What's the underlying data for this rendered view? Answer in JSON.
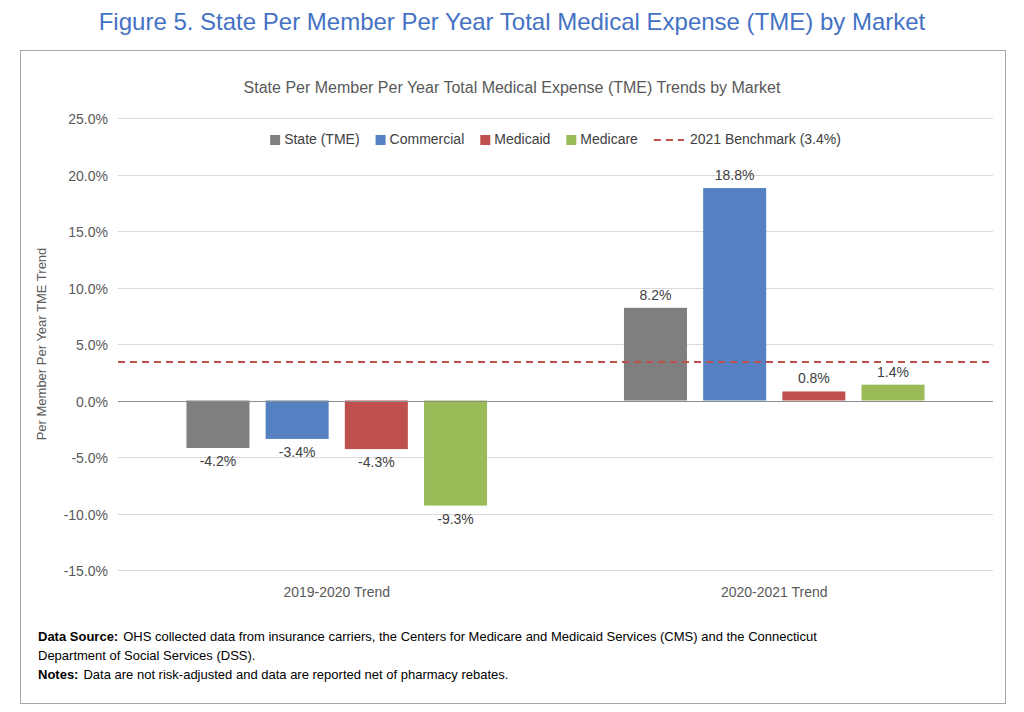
{
  "header": {
    "title": "Figure 5. State Per Member Per Year Total Medical Expense (TME) by Market"
  },
  "chart_data": {
    "type": "bar",
    "title": "State Per Member Per Year Total Medical Expense (TME) Trends by Market",
    "y_label": "Per Member Per Year TME Trend",
    "categories": [
      "2019-2020 Trend",
      "2020-2021 Trend"
    ],
    "series": [
      {
        "name": "State (TME)",
        "color": "#7f7f7f",
        "values": [
          -4.2,
          8.2
        ],
        "value_labels": [
          "-4.2%",
          "8.2%"
        ]
      },
      {
        "name": "Commercial",
        "color": "#5580c2",
        "values": [
          -3.4,
          18.8
        ],
        "value_labels": [
          "-3.4%",
          "18.8%"
        ]
      },
      {
        "name": "Medicaid",
        "color": "#bf504d",
        "values": [
          -4.3,
          0.8
        ],
        "value_labels": [
          "-4.3%",
          "0.8%"
        ]
      },
      {
        "name": "Medicare",
        "color": "#9bbb59",
        "values": [
          -9.3,
          1.4
        ],
        "value_labels": [
          "-9.3%",
          "1.4%"
        ]
      }
    ],
    "reference_lines": [
      {
        "name": "2021 Benchmark (3.4%)",
        "value": 3.4,
        "color": "#c0504d",
        "line_style": "dashed"
      }
    ],
    "ylim": [
      -15,
      25
    ],
    "yticks": [
      {
        "value": -15,
        "label": "-15.0%"
      },
      {
        "value": -10,
        "label": "-10.0%"
      },
      {
        "value": -5,
        "label": "-5.0%"
      },
      {
        "value": 0,
        "label": "0.0%"
      },
      {
        "value": 5,
        "label": "5.0%"
      },
      {
        "value": 10,
        "label": "10.0%"
      },
      {
        "value": 15,
        "label": "15.0%"
      },
      {
        "value": 20,
        "label": "20.0%"
      },
      {
        "value": 25,
        "label": "25.0%"
      }
    ],
    "grid": true,
    "legend": "top",
    "data_labels": true
  },
  "notes": [
    {
      "label": "Data Source:",
      "lines": [
        "OHS collected data from insurance carriers, the Centers for Medicare and Medicaid Services (CMS) and the Connecticut",
        "Department of Social Services (DSS)."
      ]
    },
    {
      "label": "Notes:",
      "lines": [
        "Data are not risk-adjusted and data are reported net of pharmacy rebates."
      ]
    }
  ]
}
